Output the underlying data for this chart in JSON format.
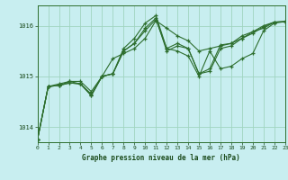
{
  "title": "Graphe pression niveau de la mer (hPa)",
  "bg_color": "#c8eef0",
  "plot_bg_color": "#c8eef0",
  "grid_color": "#a0d4c0",
  "line_color": "#2d6e2d",
  "marker_color": "#2d6e2d",
  "ylim": [
    1013.7,
    1016.4
  ],
  "yticks": [
    1014,
    1015,
    1016
  ],
  "xlim": [
    0,
    23
  ],
  "xticks": [
    0,
    1,
    2,
    3,
    4,
    5,
    6,
    7,
    8,
    9,
    10,
    11,
    12,
    13,
    14,
    15,
    16,
    17,
    18,
    19,
    20,
    21,
    22,
    23
  ],
  "series": [
    {
      "x": [
        0,
        1,
        2,
        3,
        4,
        5,
        6,
        7,
        8,
        9,
        10,
        11,
        12,
        13,
        14,
        15,
        16,
        17,
        18,
        19,
        20,
        21,
        22,
        23
      ],
      "y": [
        1013.75,
        1014.8,
        1014.85,
        1014.9,
        1014.9,
        1014.7,
        1015.0,
        1015.35,
        1015.45,
        1015.55,
        1015.75,
        1016.1,
        1015.95,
        1015.8,
        1015.7,
        1015.5,
        1015.55,
        1015.6,
        1015.65,
        1015.75,
        1015.85,
        1015.98,
        1016.07,
        1016.08
      ]
    },
    {
      "x": [
        0,
        1,
        2,
        3,
        4,
        5,
        6,
        7,
        8,
        9,
        10,
        11,
        12,
        13,
        14,
        15,
        16,
        17,
        18,
        19,
        20,
        21,
        22,
        23
      ],
      "y": [
        1013.75,
        1014.8,
        1014.82,
        1014.9,
        1014.85,
        1014.65,
        1015.0,
        1015.05,
        1015.55,
        1015.75,
        1016.05,
        1016.2,
        1015.55,
        1015.5,
        1015.4,
        1015.0,
        1015.5,
        1015.15,
        1015.2,
        1015.35,
        1015.45,
        1015.9,
        1016.05,
        1016.08
      ]
    },
    {
      "x": [
        0,
        1,
        2,
        3,
        4,
        5,
        6,
        7,
        8,
        9,
        10,
        11,
        12,
        13,
        14,
        15,
        16,
        17,
        18,
        19,
        20,
        21,
        22,
        23
      ],
      "y": [
        1013.75,
        1014.8,
        1014.82,
        1014.87,
        1014.85,
        1014.62,
        1015.0,
        1015.05,
        1015.5,
        1015.65,
        1015.95,
        1016.15,
        1015.5,
        1015.6,
        1015.55,
        1015.05,
        1015.1,
        1015.55,
        1015.6,
        1015.75,
        1015.88,
        1015.95,
        1016.07,
        1016.08
      ]
    },
    {
      "x": [
        0,
        1,
        2,
        3,
        4,
        5,
        6,
        7,
        8,
        9,
        10,
        11,
        12,
        13,
        14,
        15,
        16,
        17,
        18,
        19,
        20,
        21,
        22,
        23
      ],
      "y": [
        1013.75,
        1014.8,
        1014.82,
        1014.87,
        1014.85,
        1014.62,
        1015.0,
        1015.05,
        1015.5,
        1015.65,
        1015.9,
        1016.12,
        1015.55,
        1015.65,
        1015.55,
        1015.05,
        1015.15,
        1015.62,
        1015.65,
        1015.8,
        1015.88,
        1016.0,
        1016.07,
        1016.08
      ]
    }
  ]
}
